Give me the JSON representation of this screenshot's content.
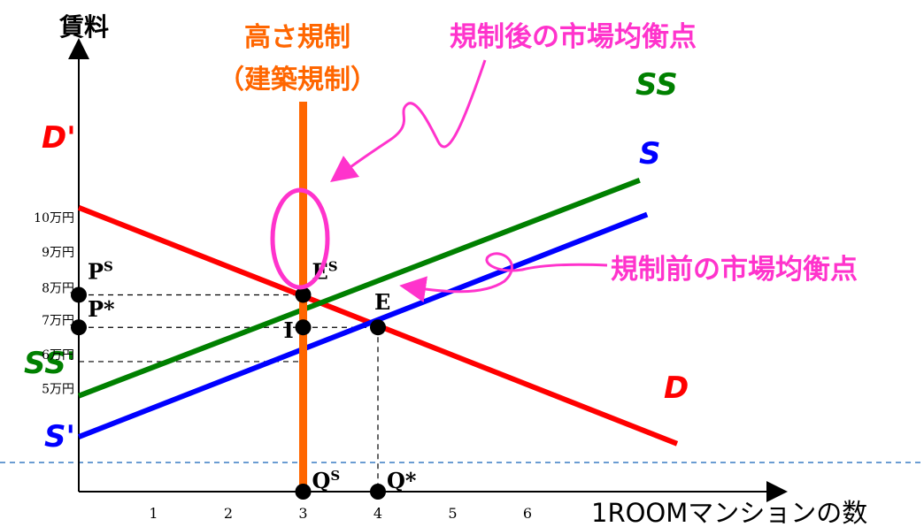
{
  "chart_data": {
    "type": "line",
    "xlabel": "1ROOMマンションの数",
    "ylabel": "賃料",
    "x_ticks": [
      "1",
      "2",
      "3",
      "4",
      "5",
      "6"
    ],
    "y_ticks": [
      "5万円",
      "6万円",
      "7万円",
      "8万円",
      "9万円",
      "10万円"
    ],
    "xlim": [
      0,
      9.4
    ],
    "ylim": [
      2.2,
      11.5
    ],
    "colors": {
      "demand": "#ff0000",
      "supply": "#0000ff",
      "supply_after": "#008000",
      "regulation": "#ff6600",
      "annotation": "#ff33cc",
      "baseline": "#4a86c8"
    },
    "series": [
      {
        "name": "D",
        "start_label": "D'",
        "x": [
          0,
          8
        ],
        "y": [
          10.5,
          3.6
        ]
      },
      {
        "name": "S",
        "start_label": "S'",
        "x": [
          0,
          7.6
        ],
        "y": [
          3.8,
          10.3
        ]
      },
      {
        "name": "SS",
        "start_label": "SS'",
        "x": [
          0,
          7.5
        ],
        "y": [
          5.0,
          11.3
        ]
      }
    ],
    "regulation_line": {
      "label": "高さ規制",
      "label2": "（建築規制）",
      "x": 3
    },
    "points": [
      {
        "label": "E",
        "x": 4,
        "y": 7.0
      },
      {
        "label": "E",
        "sup": "S",
        "x": 3,
        "y": 7.95
      },
      {
        "label": "I",
        "x": 3,
        "y": 7.0
      },
      {
        "label": "P",
        "sup": "S",
        "x": 0,
        "y": 7.95
      },
      {
        "label": "P*",
        "x": 0,
        "y": 7.0
      },
      {
        "label": "Q",
        "sup": "S",
        "x": 3,
        "y": 2.2
      },
      {
        "label": "Q*",
        "x": 4,
        "y": 2.2
      }
    ],
    "annotations": [
      {
        "text": "規制後の市場均衡点"
      },
      {
        "text": "規制前の市場均衡点"
      }
    ],
    "dashed_levels": [
      7.95,
      7.0,
      6.0
    ],
    "baseline_y": 3.05
  }
}
